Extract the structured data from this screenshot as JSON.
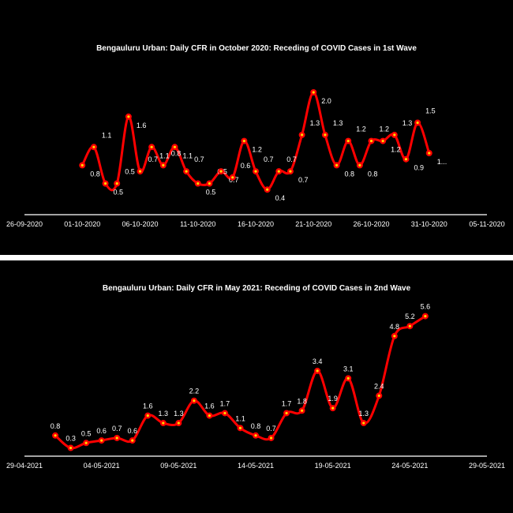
{
  "chart_data": [
    {
      "type": "line",
      "title": "Bengauluru Urban: Daily CFR in October 2020: Receding of COVID Cases in 1st Wave",
      "xlabel": "",
      "ylabel": "",
      "x_start_date": "01-10-2020",
      "x": [
        "01-10-2020",
        "02-10-2020",
        "03-10-2020",
        "04-10-2020",
        "05-10-2020",
        "06-10-2020",
        "07-10-2020",
        "08-10-2020",
        "09-10-2020",
        "10-10-2020",
        "11-10-2020",
        "12-10-2020",
        "13-10-2020",
        "14-10-2020",
        "15-10-2020",
        "16-10-2020",
        "17-10-2020",
        "18-10-2020",
        "19-10-2020",
        "20-10-2020",
        "21-10-2020",
        "22-10-2020",
        "23-10-2020",
        "24-10-2020",
        "25-10-2020",
        "26-10-2020",
        "27-10-2020",
        "28-10-2020",
        "29-10-2020",
        "30-10-2020",
        "31-10-2020"
      ],
      "values": [
        0.8,
        1.1,
        0.5,
        0.5,
        1.6,
        0.7,
        1.1,
        0.8,
        1.1,
        0.7,
        0.5,
        0.5,
        0.7,
        0.6,
        1.2,
        0.7,
        0.4,
        0.7,
        0.7,
        1.3,
        2.0,
        1.3,
        0.8,
        1.2,
        0.8,
        1.2,
        1.2,
        1.3,
        0.9,
        1.5,
        1.0
      ],
      "labels": [
        "0.8",
        "1.1",
        "0.5",
        "0.5",
        "1.6",
        "0.7",
        "1.1",
        "0.8",
        "1.1",
        "0.7",
        "0.5",
        "0.5",
        "0.7",
        "0.6",
        "1.2",
        "0.7",
        "0.4",
        "0.7",
        "0.7",
        "1.3",
        "2.0",
        "1.3",
        "0.8",
        "1.2",
        "0.8",
        "1.2",
        "1.2",
        "1.3",
        "0.9",
        "1.5",
        "1..."
      ],
      "xticks": [
        "26-09-2020",
        "01-10-2020",
        "06-10-2020",
        "11-10-2020",
        "16-10-2020",
        "21-10-2020",
        "26-10-2020",
        "31-10-2020",
        "05-11-2020"
      ],
      "xlim_days": [
        -5,
        35
      ],
      "ylim": [
        0,
        2.2
      ],
      "grid": false,
      "line_color": "#ff0000",
      "marker_color": "#ffd700"
    },
    {
      "type": "line",
      "title": "Bengauluru Urban: Daily CFR in May 2021: Receding of COVID Cases in 2nd Wave",
      "xlabel": "",
      "ylabel": "",
      "x": [
        "01-05-2021",
        "02-05-2021",
        "03-05-2021",
        "04-05-2021",
        "05-05-2021",
        "06-05-2021",
        "07-05-2021",
        "08-05-2021",
        "09-05-2021",
        "10-05-2021",
        "11-05-2021",
        "12-05-2021",
        "13-05-2021",
        "14-05-2021",
        "15-05-2021",
        "16-05-2021",
        "17-05-2021",
        "18-05-2021",
        "19-05-2021",
        "20-05-2021",
        "21-05-2021",
        "22-05-2021",
        "23-05-2021",
        "24-05-2021",
        "25-05-2021"
      ],
      "values": [
        0.8,
        0.3,
        0.5,
        0.6,
        0.7,
        0.6,
        1.6,
        1.3,
        1.3,
        2.2,
        1.6,
        1.7,
        1.1,
        0.8,
        0.7,
        1.7,
        1.8,
        3.4,
        1.9,
        3.1,
        1.3,
        2.4,
        4.8,
        5.2,
        5.6
      ],
      "labels": [
        "0.8",
        "0.3",
        "0.5",
        "0.6",
        "0.7",
        "0.6",
        "1.6",
        "1.3",
        "1.3",
        "2.2",
        "1.6",
        "1.7",
        "1.1",
        "0.8",
        "0.7",
        "1.7",
        "1.8",
        "3.4",
        "1.9",
        "3.1",
        "1.3",
        "2.4",
        "4.8",
        "5.2",
        "5.6"
      ],
      "xticks": [
        "29-04-2021",
        "04-05-2021",
        "09-05-2021",
        "14-05-2021",
        "19-05-2021",
        "24-05-2021",
        "29-05-2021"
      ],
      "xlim_days": [
        -2,
        28
      ],
      "ylim": [
        0,
        6.0
      ],
      "grid": false,
      "line_color": "#ff0000",
      "marker_color": "#ffd700"
    }
  ]
}
